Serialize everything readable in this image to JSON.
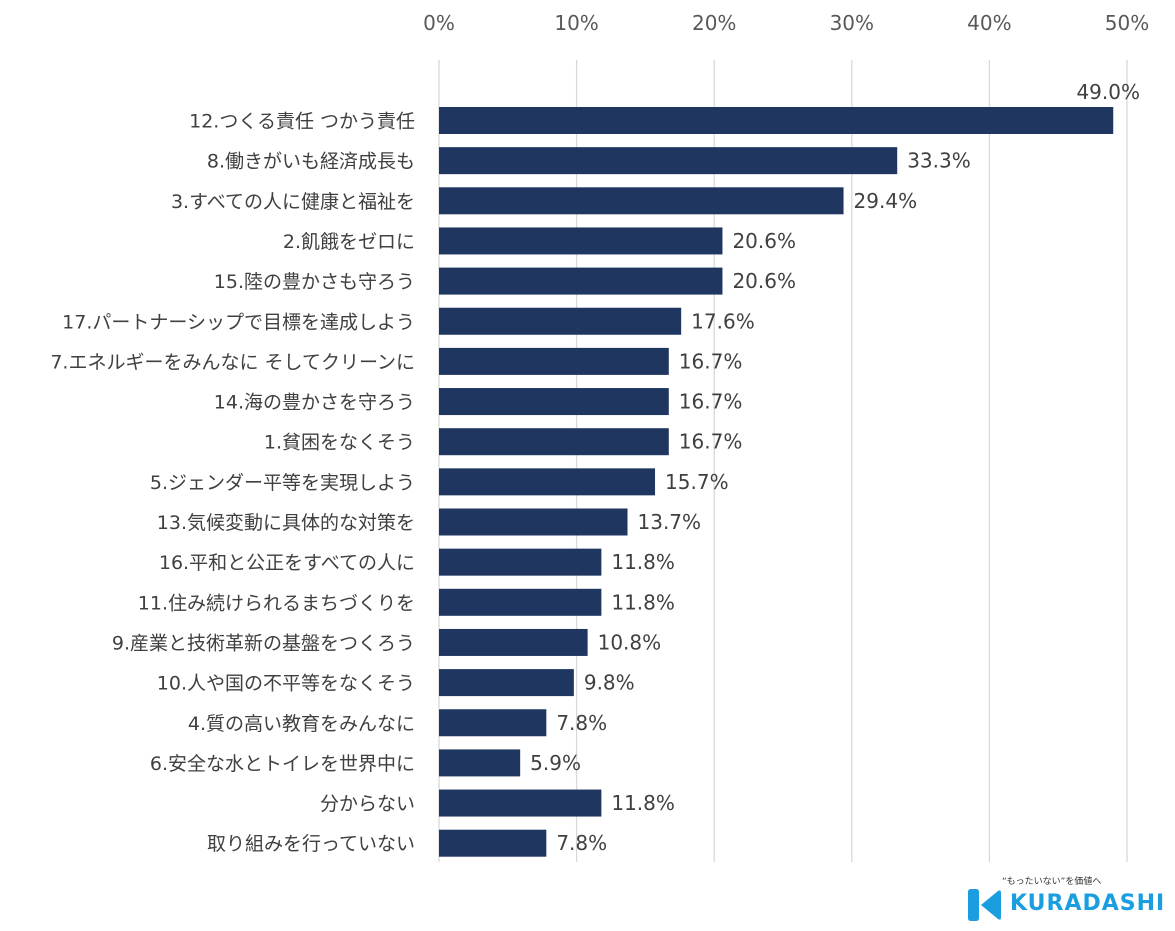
{
  "chart_data": {
    "type": "bar",
    "orientation": "horizontal",
    "title": "",
    "xlabel": "",
    "ylabel": "",
    "xlim": [
      0,
      50
    ],
    "ticks": [
      "0%",
      "10%",
      "20%",
      "30%",
      "40%",
      "50%"
    ],
    "tick_values": [
      0,
      10,
      20,
      30,
      40,
      50
    ],
    "grid": true,
    "bar_color": "#1f3660",
    "categories": [
      "12.つくる責任 つかう責任",
      "8.働きがいも経済成長も",
      "3.すべての人に健康と福祉を",
      "2.飢餓をゼロに",
      "15.陸の豊かさも守ろう",
      "17.パートナーシップで目標を達成しよう",
      "7.エネルギーをみんなに そしてクリーンに",
      "14.海の豊かさを守ろう",
      "1.貧困をなくそう",
      "5.ジェンダー平等を実現しよう",
      "13.気候変動に具体的な対策を",
      "16.平和と公正をすべての人に",
      "11.住み続けられるまちづくりを",
      "9.産業と技術革新の基盤をつくろう",
      "10.人や国の不平等をなくそう",
      "4.質の高い教育をみんなに",
      "6.安全な水とトイレを世界中に",
      "分からない",
      "取り組みを行っていない"
    ],
    "values": [
      49.0,
      33.3,
      29.4,
      20.6,
      20.6,
      17.6,
      16.7,
      16.7,
      16.7,
      15.7,
      13.7,
      11.8,
      11.8,
      10.8,
      9.8,
      7.8,
      5.9,
      11.8,
      7.8
    ],
    "value_labels": [
      "49.0%",
      "33.3%",
      "29.4%",
      "20.6%",
      "20.6%",
      "17.6%",
      "16.7%",
      "16.7%",
      "16.7%",
      "15.7%",
      "13.7%",
      "11.8%",
      "11.8%",
      "10.8%",
      "9.8%",
      "7.8%",
      "5.9%",
      "11.8%",
      "7.8%"
    ]
  },
  "logo": {
    "tagline": "“もったいない”を価値へ",
    "wordmark": "KURADASHI",
    "color": "#1a9ee0"
  }
}
